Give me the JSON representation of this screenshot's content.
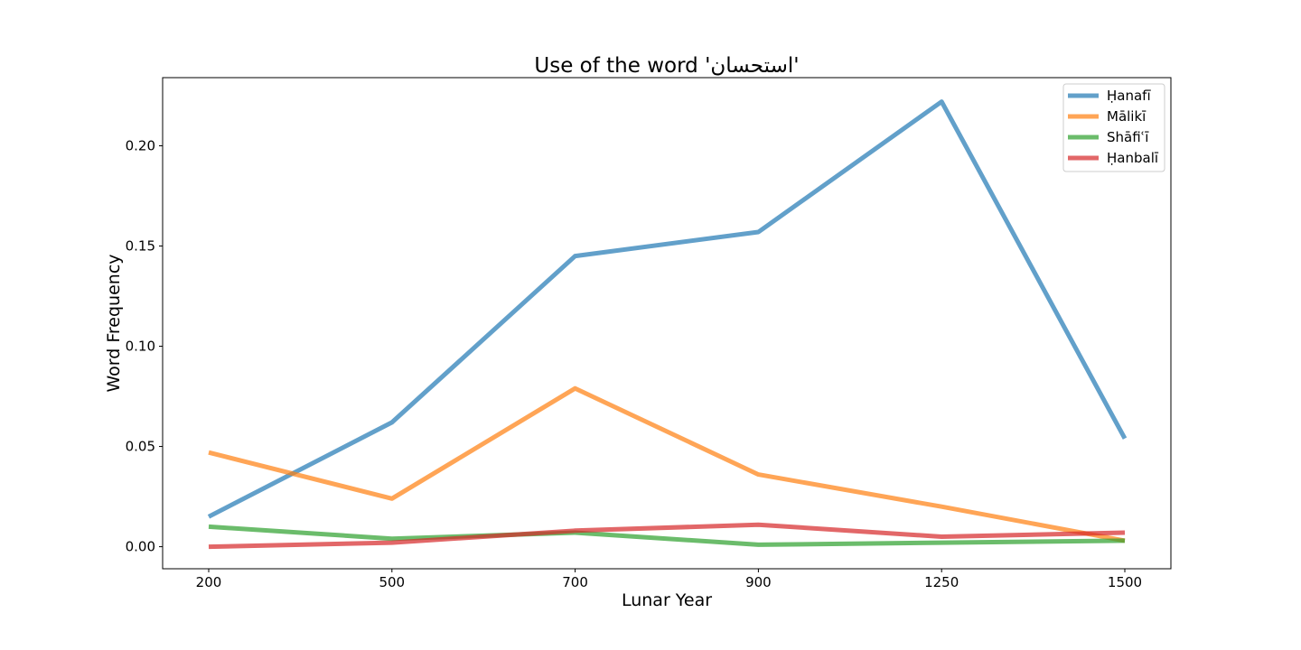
{
  "chart_data": {
    "type": "line",
    "title": "Use of the word 'استحسان'",
    "xlabel": "Lunar Year",
    "ylabel": "Word Frequency",
    "categories": [
      "200",
      "500",
      "700",
      "900",
      "1250",
      "1500"
    ],
    "yticks": [
      "0.00",
      "0.05",
      "0.10",
      "0.15",
      "0.20"
    ],
    "ylim": [
      -0.011,
      0.234
    ],
    "grid": false,
    "legend_position": "top-right",
    "series": [
      {
        "name": "Ḥanafī",
        "color": "#1f77b4",
        "values": [
          0.015,
          0.062,
          0.145,
          0.157,
          0.222,
          0.054
        ]
      },
      {
        "name": "Mālikī",
        "color": "#ff7f0e",
        "values": [
          0.047,
          0.024,
          0.079,
          0.036,
          0.02,
          0.003
        ]
      },
      {
        "name": "Shāfiʿī",
        "color": "#2ca02c",
        "values": [
          0.01,
          0.004,
          0.007,
          0.001,
          0.002,
          0.003
        ]
      },
      {
        "name": "Ḥanbalī",
        "color": "#d62728",
        "values": [
          0.0,
          0.002,
          0.008,
          0.011,
          0.005,
          0.007
        ]
      }
    ]
  }
}
